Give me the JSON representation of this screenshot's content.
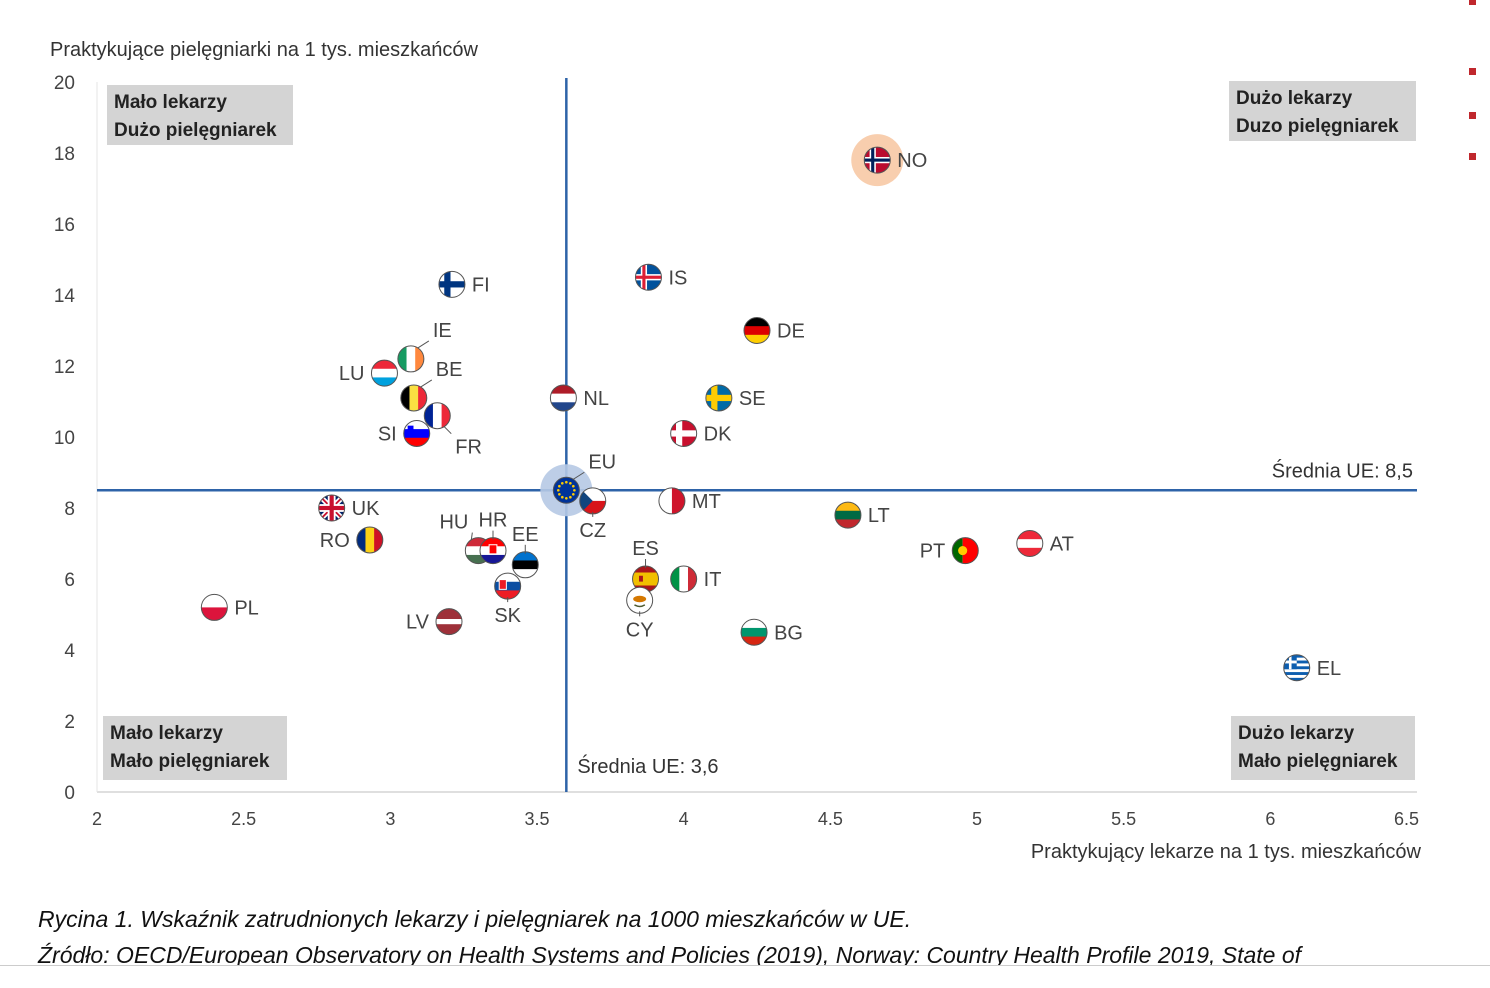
{
  "chart_data": {
    "type": "scatter",
    "ylabel": "Praktykujące pielęgniarki na 1 tys. mieszkańców",
    "xlabel": "Praktykujący lekarze na 1 tys. mieszkańców",
    "xlim": [
      2,
      6.5
    ],
    "ylim": [
      0,
      20
    ],
    "xticks": [
      "2",
      "2.5",
      "3",
      "3.5",
      "4",
      "4.5",
      "5",
      "5.5",
      "6",
      "6.5"
    ],
    "yticks": [
      "0",
      "2",
      "4",
      "6",
      "8",
      "10",
      "12",
      "14",
      "16",
      "18",
      "20"
    ],
    "grid": false,
    "ref_lines": {
      "horizontal": {
        "y": 8.5,
        "label": "Średnia UE: 8,5"
      },
      "vertical": {
        "x": 3.6,
        "label": "Średnia UE: 3,6"
      },
      "color": "#2e63a8"
    },
    "quadrant_labels": [
      {
        "position": "top-left",
        "line1": "Mało lekarzy",
        "line2": "Dużo pielęgniarek"
      },
      {
        "position": "top-right",
        "line1": "Dużo lekarzy",
        "line2": "Duzo pielęgniarek"
      },
      {
        "position": "bottom-left",
        "line1": "Mało lekarzy",
        "line2": "Mało pielęgniarek"
      },
      {
        "position": "bottom-right",
        "line1": "Dużo lekarzy",
        "line2": "Mało pielęgniarek"
      }
    ],
    "points": [
      {
        "code": "NO",
        "x": 4.66,
        "y": 17.8,
        "flag": "norway",
        "highlight": true,
        "label_side": "right"
      },
      {
        "code": "FI",
        "x": 3.21,
        "y": 14.3,
        "flag": "finland",
        "label_side": "right"
      },
      {
        "code": "IS",
        "x": 3.88,
        "y": 14.5,
        "flag": "iceland",
        "label_side": "right"
      },
      {
        "code": "DE",
        "x": 4.25,
        "y": 13.0,
        "flag": "germany",
        "label_side": "right"
      },
      {
        "code": "IE",
        "x": 3.07,
        "y": 12.2,
        "flag": "ireland",
        "label_side": "up-right"
      },
      {
        "code": "LU",
        "x": 2.98,
        "y": 11.8,
        "flag": "luxembourg",
        "label_side": "left"
      },
      {
        "code": "BE",
        "x": 3.08,
        "y": 11.1,
        "flag": "belgium",
        "label_side": "up-right"
      },
      {
        "code": "NL",
        "x": 3.59,
        "y": 11.1,
        "flag": "netherlands",
        "label_side": "right"
      },
      {
        "code": "SE",
        "x": 4.12,
        "y": 11.1,
        "flag": "sweden",
        "label_side": "right"
      },
      {
        "code": "FR",
        "x": 3.16,
        "y": 10.6,
        "flag": "france",
        "label_side": "down-right"
      },
      {
        "code": "SI",
        "x": 3.09,
        "y": 10.1,
        "flag": "slovenia",
        "label_side": "left"
      },
      {
        "code": "DK",
        "x": 4.0,
        "y": 10.1,
        "flag": "denmark",
        "label_side": "right"
      },
      {
        "code": "EU",
        "x": 3.6,
        "y": 8.5,
        "flag": "eu",
        "highlight": true,
        "label_side": "up-right"
      },
      {
        "code": "CZ",
        "x": 3.69,
        "y": 8.2,
        "flag": "czechia",
        "label_side": "down"
      },
      {
        "code": "MT",
        "x": 3.96,
        "y": 8.2,
        "flag": "malta",
        "label_side": "right"
      },
      {
        "code": "UK",
        "x": 2.8,
        "y": 8.0,
        "flag": "uk",
        "label_side": "right"
      },
      {
        "code": "LT",
        "x": 4.56,
        "y": 7.8,
        "flag": "lithuania",
        "label_side": "right"
      },
      {
        "code": "RO",
        "x": 2.93,
        "y": 7.1,
        "flag": "romania",
        "label_side": "left"
      },
      {
        "code": "AT",
        "x": 5.18,
        "y": 7.0,
        "flag": "austria",
        "label_side": "right"
      },
      {
        "code": "PT",
        "x": 4.96,
        "y": 6.8,
        "flag": "portugal",
        "label_side": "left"
      },
      {
        "code": "HU",
        "x": 3.3,
        "y": 6.8,
        "flag": "hungary",
        "label_side": "up-left"
      },
      {
        "code": "HR",
        "x": 3.35,
        "y": 6.8,
        "flag": "croatia",
        "label_side": "up"
      },
      {
        "code": "EE",
        "x": 3.46,
        "y": 6.4,
        "flag": "estonia",
        "label_side": "up"
      },
      {
        "code": "ES",
        "x": 3.87,
        "y": 6.0,
        "flag": "spain",
        "label_side": "up"
      },
      {
        "code": "IT",
        "x": 4.0,
        "y": 6.0,
        "flag": "italy",
        "label_side": "right"
      },
      {
        "code": "SK",
        "x": 3.4,
        "y": 5.8,
        "flag": "slovakia",
        "label_side": "down"
      },
      {
        "code": "CY",
        "x": 3.85,
        "y": 5.4,
        "flag": "cyprus",
        "label_side": "down"
      },
      {
        "code": "PL",
        "x": 2.4,
        "y": 5.2,
        "flag": "poland",
        "label_side": "right"
      },
      {
        "code": "LV",
        "x": 3.2,
        "y": 4.8,
        "flag": "latvia",
        "label_side": "left"
      },
      {
        "code": "BG",
        "x": 4.24,
        "y": 4.5,
        "flag": "bulgaria",
        "label_side": "right"
      },
      {
        "code": "EL",
        "x": 6.09,
        "y": 3.5,
        "flag": "greece",
        "label_side": "right"
      }
    ]
  },
  "caption": {
    "line1": "Rycina 1. Wskaźnik zatrudnionych lekarzy i pielęgniarek na 1000 mieszkańców w UE.",
    "line2": "Źródło: OECD/European Observatory on Health Systems and Policies (2019), Norway: Country Health Profile 2019, State of"
  },
  "colors": {
    "axis_text": "#444444",
    "ref_line": "#2e63a8",
    "quadrant_box": "#d4d4d4",
    "highlight_no": "#f7c9a5",
    "highlight_eu": "#b6c9e4",
    "edge_marks": "#c0272d"
  }
}
